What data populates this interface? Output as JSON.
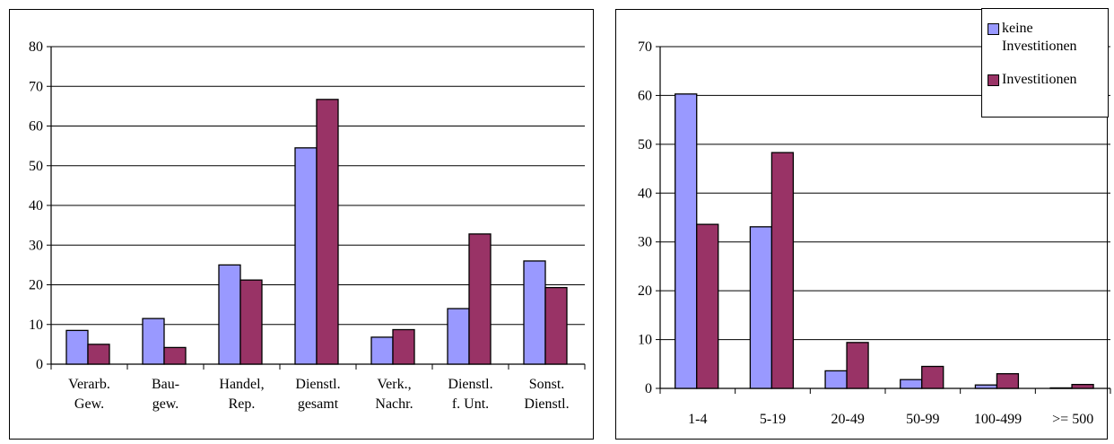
{
  "chart_data": [
    {
      "type": "bar",
      "categories": [
        [
          "Verarb.",
          "Gew."
        ],
        [
          "Bau-",
          "gew."
        ],
        [
          "Handel,",
          "Rep."
        ],
        [
          "Dienstl.",
          "gesamt"
        ],
        [
          "Verk.,",
          "Nachr."
        ],
        [
          "Dienstl.",
          "f. Unt."
        ],
        [
          "Sonst.",
          "Dienstl."
        ]
      ],
      "series": [
        {
          "name": "keine Investitionen",
          "color": "#9999ff",
          "values": [
            8.5,
            11.5,
            25,
            54.5,
            6.8,
            14,
            26
          ]
        },
        {
          "name": "Investitionen",
          "color": "#993366",
          "values": [
            5,
            4.2,
            21.2,
            66.7,
            8.7,
            32.8,
            19.3
          ]
        }
      ],
      "ylim": [
        0,
        80
      ],
      "yticks": [
        0,
        10,
        20,
        30,
        40,
        50,
        60,
        70,
        80
      ],
      "grid": true,
      "title": "",
      "xlabel": "",
      "ylabel": ""
    },
    {
      "type": "bar",
      "categories": [
        [
          "1-4"
        ],
        [
          "5-19"
        ],
        [
          "20-49"
        ],
        [
          "50-99"
        ],
        [
          "100-499"
        ],
        [
          ">= 500"
        ]
      ],
      "series": [
        {
          "name": "keine Investitionen",
          "color": "#9999ff",
          "values": [
            60.3,
            33.1,
            3.6,
            1.8,
            0.7,
            0.1
          ]
        },
        {
          "name": "Investitionen",
          "color": "#993366",
          "values": [
            33.6,
            48.3,
            9.4,
            4.5,
            3,
            0.8
          ]
        }
      ],
      "ylim": [
        0,
        70
      ],
      "yticks": [
        0,
        10,
        20,
        30,
        40,
        50,
        60,
        70
      ],
      "grid": true,
      "legend_position": "top-right",
      "title": "",
      "xlabel": "",
      "ylabel": ""
    }
  ],
  "legend": {
    "items": [
      {
        "label_lines": [
          "keine",
          "Investitionen"
        ],
        "color": "#9999ff"
      },
      {
        "label_lines": [
          "Investitionen"
        ],
        "color": "#993366"
      }
    ]
  }
}
